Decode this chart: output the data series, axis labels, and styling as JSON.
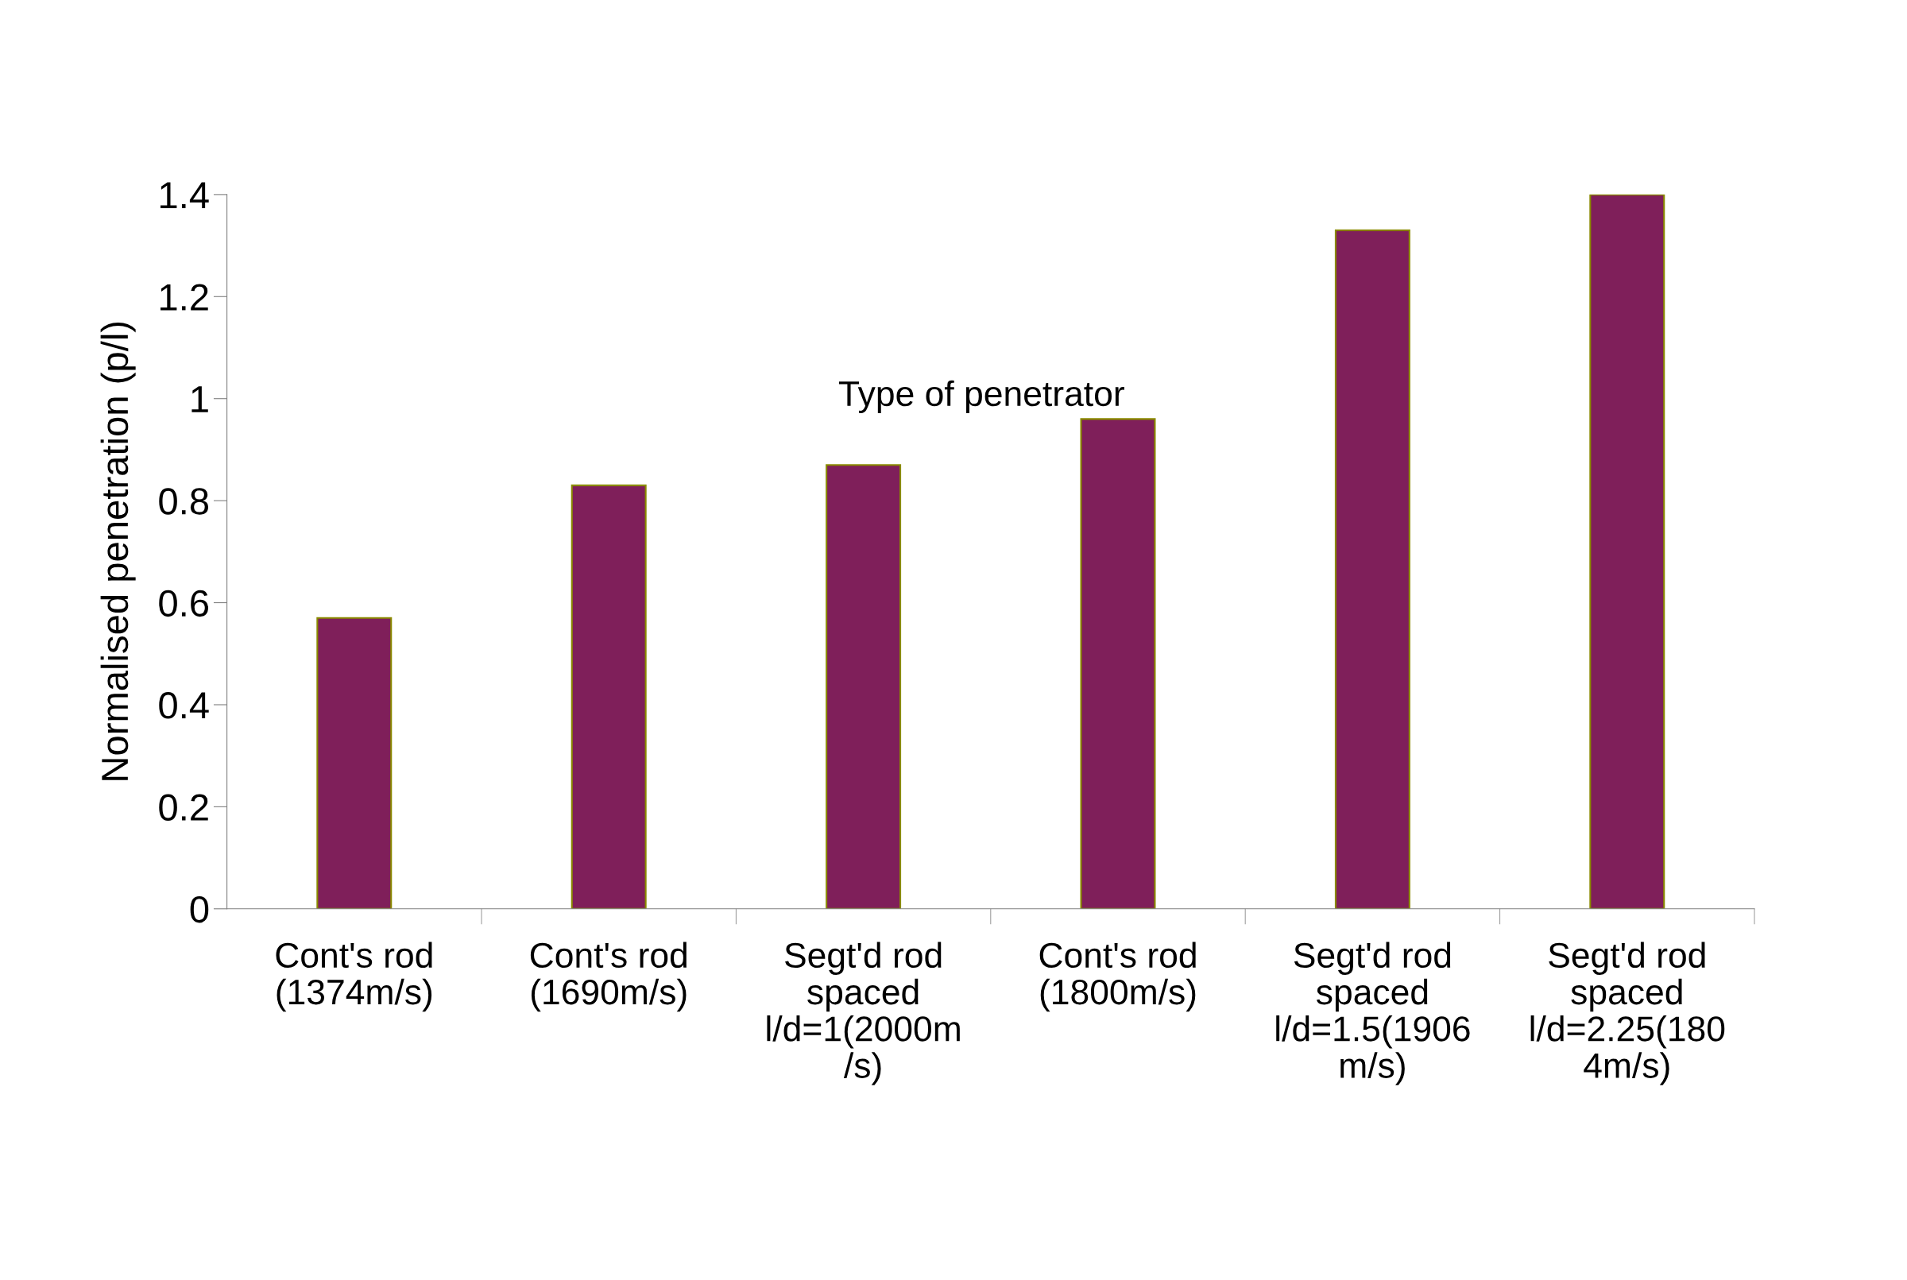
{
  "chart_data": {
    "type": "bar",
    "xlabel": "Type of penetrator",
    "ylabel": "Normalised penetration (p/l)",
    "categories": [
      "Cont's rod\n(1374m/s)",
      "Cont's rod\n(1690m/s)",
      "Segt'd rod\nspaced\nl/d=1(2000m\n/s)",
      "Cont's rod\n(1800m/s)",
      "Segt'd rod\nspaced\nl/d=1.5(1906\nm/s)",
      "Segt'd rod\nspaced\nl/d=2.25(180\n4m/s)"
    ],
    "values": [
      0.57,
      0.83,
      0.87,
      0.96,
      1.33,
      1.4
    ],
    "color": "#7f1f5a",
    "ylim": [
      0,
      1.4
    ],
    "yticks": [
      0,
      0.2,
      0.4,
      0.6,
      0.8,
      1,
      1.2,
      1.4
    ],
    "grid": false,
    "legend": false
  }
}
